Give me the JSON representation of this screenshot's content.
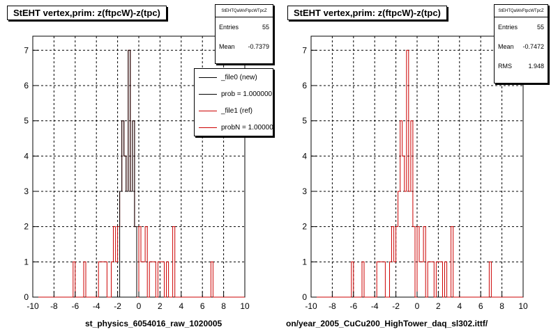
{
  "chart_data": [
    {
      "type": "histogram",
      "title": "StEHT  vertex,prim: z(ftpcW)-z(tpc)",
      "stats": {
        "header": "StEHTQaWxFtpcWTpcZ",
        "entries_label": "Entries",
        "entries": "55",
        "mean_label": "Mean",
        "mean": "-0.7379"
      },
      "legend": [
        {
          "label": "_file0 (new)",
          "color": "#000000"
        },
        {
          "label": "prob = 1.000000",
          "color": "#000000"
        },
        {
          "label": "_file1 (ref)",
          "color": "#cc0000"
        },
        {
          "label": "probN = 1.000000",
          "color": "#cc0000"
        }
      ],
      "footer": "st_physics_6054016_raw_1020005",
      "xlim": [
        -10,
        10
      ],
      "ylim": [
        0,
        7.4
      ],
      "x_ticks": [
        "-10",
        "-8",
        "-6",
        "-4",
        "-2",
        "0",
        "2",
        "4",
        "6",
        "8",
        "10"
      ],
      "y_ticks": [
        "0",
        "1",
        "2",
        "3",
        "4",
        "5",
        "6",
        "7"
      ],
      "bin_width": 0.2,
      "series": [
        {
          "color": "#cc0000",
          "bins": [
            [
              -6.2,
              1
            ],
            [
              -5.2,
              1
            ],
            [
              -3.8,
              1
            ],
            [
              -3.6,
              1
            ],
            [
              -3.4,
              1
            ],
            [
              -3.2,
              1
            ],
            [
              -2.6,
              1
            ],
            [
              -2.4,
              2
            ],
            [
              -2.2,
              1
            ],
            [
              -2.0,
              2
            ],
            [
              -1.8,
              3
            ],
            [
              -1.6,
              5
            ],
            [
              -1.4,
              4
            ],
            [
              -1.2,
              3
            ],
            [
              -1.0,
              7
            ],
            [
              -0.8,
              3
            ],
            [
              -0.6,
              5
            ],
            [
              -0.4,
              2
            ],
            [
              0.0,
              2
            ],
            [
              0.2,
              1
            ],
            [
              0.4,
              1
            ],
            [
              0.6,
              2
            ],
            [
              1.0,
              1
            ],
            [
              1.2,
              1
            ],
            [
              1.4,
              1
            ],
            [
              1.8,
              1
            ],
            [
              2.0,
              1
            ],
            [
              2.2,
              1
            ],
            [
              2.6,
              1
            ],
            [
              3.2,
              2
            ],
            [
              6.8,
              1
            ]
          ]
        },
        {
          "color": "#000000",
          "bins": [
            [
              -1.8,
              3
            ],
            [
              -1.6,
              5
            ],
            [
              -1.4,
              4
            ],
            [
              -1.2,
              3
            ],
            [
              -1.0,
              7
            ],
            [
              -0.8,
              3
            ],
            [
              -0.6,
              5
            ],
            [
              -0.4,
              2
            ]
          ]
        }
      ]
    },
    {
      "type": "histogram",
      "title": "StEHT  vertex,prim: z(ftpcW)-z(tpc)",
      "stats": {
        "header": "StEHTQaWxFtpcWTpcZ",
        "entries_label": "Entries",
        "entries": "55",
        "mean_label": "Mean",
        "mean": "-0.7472",
        "rms_label": "RMS",
        "rms": "1.948"
      },
      "footer": "on/year_2005_CuCu200_HighTower_daq_sl302.ittf/",
      "xlim": [
        -10,
        10
      ],
      "ylim": [
        0,
        7.4
      ],
      "x_ticks": [
        "-10",
        "-8",
        "-6",
        "-4",
        "-2",
        "0",
        "2",
        "4",
        "6",
        "8",
        "10"
      ],
      "y_ticks": [
        "0",
        "1",
        "2",
        "3",
        "4",
        "5",
        "6",
        "7"
      ],
      "bin_width": 0.2,
      "series": [
        {
          "color": "#cc0000",
          "bins": [
            [
              -6.2,
              1
            ],
            [
              -5.2,
              1
            ],
            [
              -3.8,
              1
            ],
            [
              -3.6,
              1
            ],
            [
              -3.4,
              1
            ],
            [
              -3.2,
              1
            ],
            [
              -2.6,
              1
            ],
            [
              -2.4,
              2
            ],
            [
              -2.2,
              1
            ],
            [
              -2.0,
              2
            ],
            [
              -1.8,
              3
            ],
            [
              -1.6,
              5
            ],
            [
              -1.4,
              4
            ],
            [
              -1.2,
              3
            ],
            [
              -1.0,
              7
            ],
            [
              -0.8,
              3
            ],
            [
              -0.6,
              5
            ],
            [
              -0.4,
              2
            ],
            [
              0.0,
              2
            ],
            [
              0.2,
              1
            ],
            [
              0.4,
              1
            ],
            [
              0.6,
              2
            ],
            [
              1.0,
              1
            ],
            [
              1.2,
              1
            ],
            [
              1.4,
              1
            ],
            [
              1.8,
              1
            ],
            [
              2.0,
              1
            ],
            [
              2.2,
              1
            ],
            [
              2.6,
              1
            ],
            [
              3.2,
              2
            ],
            [
              6.8,
              1
            ]
          ]
        }
      ]
    }
  ]
}
